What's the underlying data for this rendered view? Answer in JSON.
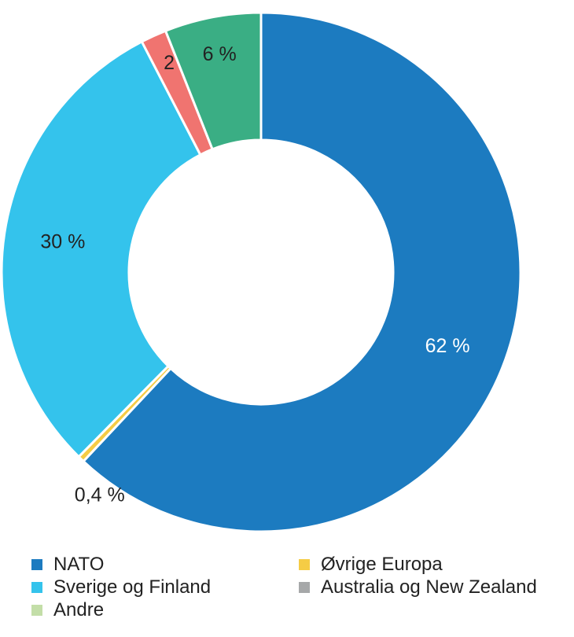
{
  "chart_data": {
    "type": "pie",
    "donut": true,
    "slices": [
      {
        "name": "NATO",
        "value": 62,
        "label": "62 %",
        "color": "#1c7bc0",
        "label_color": "#ffffff"
      },
      {
        "name": "Øvrige Europa",
        "value": 0.4,
        "label": "0,4 %",
        "color": "#f5cc45",
        "label_color": "#222222"
      },
      {
        "name": "Sverige og Finland",
        "value": 30,
        "label": "30 %",
        "color": "#34c3ec",
        "label_color": "#222222"
      },
      {
        "name": "Australia og New Zealand",
        "value": 0,
        "label": "",
        "color": "#a6a8a9",
        "label_color": "#222222"
      },
      {
        "name": "Andre",
        "value": 0,
        "label": "",
        "color": "#c3dea8",
        "label_color": "#222222"
      },
      {
        "name": "",
        "value": 1.6,
        "label": "2 %",
        "color": "#f07470",
        "label_color": "#222222"
      },
      {
        "name": "",
        "value": 6,
        "label": "6 %",
        "color": "#3aae84",
        "label_color": "#222222"
      }
    ],
    "legend": {
      "placement": "bottom",
      "items": [
        {
          "label": "NATO",
          "color": "#1c7bc0"
        },
        {
          "label": "Øvrige Europa",
          "color": "#f5cc45"
        },
        {
          "label": "Sverige og Finland",
          "color": "#34c3ec"
        },
        {
          "label": "Australia og New Zealand",
          "color": "#a6a8a9"
        },
        {
          "label": "Andre",
          "color": "#c3dea8"
        }
      ]
    }
  }
}
